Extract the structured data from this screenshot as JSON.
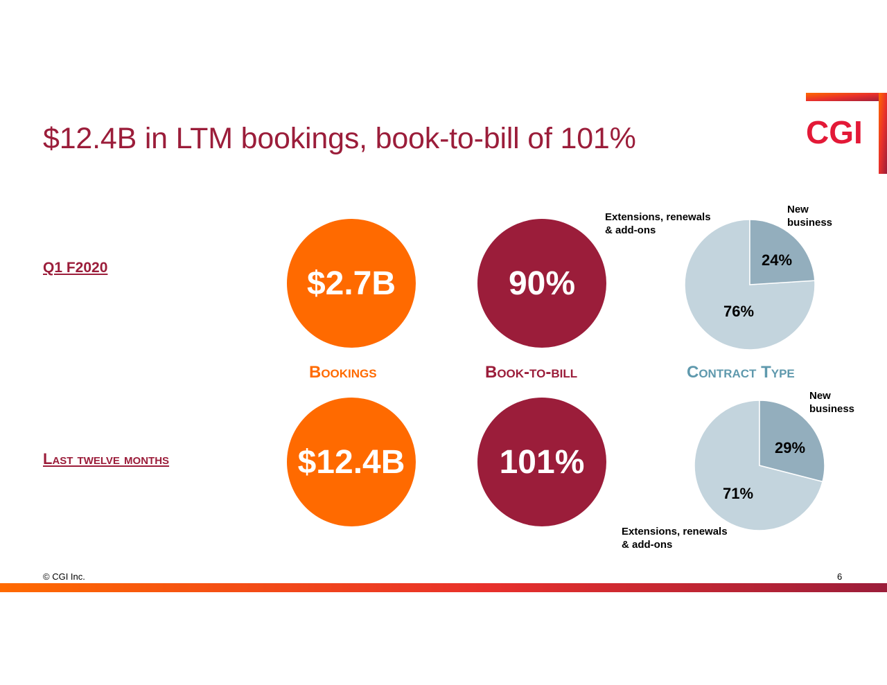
{
  "title": "$12.4B in LTM bookings, book-to-bill of 101%",
  "logo": {
    "text": "CGI"
  },
  "rows": {
    "q1": {
      "label": "Q1 F2020",
      "bookings": "$2.7B",
      "book_to_bill": "90%"
    },
    "ltm": {
      "label": "Last twelve months",
      "bookings": "$12.4B",
      "book_to_bill": "101%"
    }
  },
  "columns": {
    "bookings": "Bookings",
    "book_to_bill": "Book-to-bill",
    "contract_type": "Contract Type"
  },
  "colors": {
    "orange": "#ff6a00",
    "wine": "#9b1d3a",
    "pie_dark": "#93aebd",
    "pie_light": "#c3d4dd",
    "contract_label": "#5f99ad"
  },
  "chart_data": [
    {
      "type": "pie",
      "title": "Contract Type — Q1 F2020",
      "slices": [
        {
          "label": "New business",
          "value": 24,
          "display": "24%"
        },
        {
          "label": "Extensions, renewals & add-ons",
          "value": 76,
          "display": "76%"
        }
      ],
      "label_lines": {
        "new": [
          "New",
          "business"
        ],
        "ext": [
          "Extensions, renewals",
          "& add-ons"
        ]
      }
    },
    {
      "type": "pie",
      "title": "Contract Type — Last twelve months",
      "slices": [
        {
          "label": "New business",
          "value": 29,
          "display": "29%"
        },
        {
          "label": "Extensions, renewals & add-ons",
          "value": 71,
          "display": "71%"
        }
      ],
      "label_lines": {
        "new": [
          "New",
          "business"
        ],
        "ext": [
          "Extensions, renewals",
          "& add-ons"
        ]
      }
    }
  ],
  "footer": {
    "copyright": "© CGI Inc.",
    "page": "6"
  }
}
